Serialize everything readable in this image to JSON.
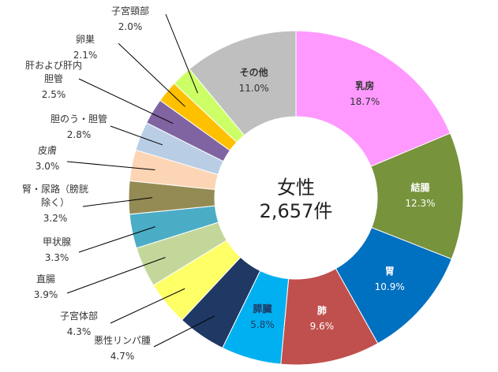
{
  "chart_data": {
    "type": "donut",
    "center_title": "女性",
    "center_subtitle": "2,657件",
    "categories": [
      "乳房",
      "結腸",
      "胃",
      "肺",
      "膵臓",
      "悪性リンパ腫",
      "子宮体部",
      "直腸",
      "甲状腺",
      "腎・尿路（膀胱\n除く）",
      "皮膚",
      "胆のう・胆管",
      "肝および肝内\n胆管",
      "卵巣",
      "子宮頸部",
      "その他"
    ],
    "values": [
      18.7,
      12.3,
      10.9,
      9.6,
      5.8,
      4.7,
      4.3,
      3.9,
      3.3,
      3.2,
      3.0,
      2.8,
      2.5,
      2.1,
      2.0,
      11.0
    ],
    "value_labels": [
      "18.7%",
      "12.3%",
      "10.9%",
      "9.6%",
      "5.8%",
      "4.7%",
      "4.3%",
      "3.9%",
      "3.3%",
      "3.2%",
      "3.0%",
      "2.8%",
      "2.5%",
      "2.1%",
      "2.0%",
      "11.0%"
    ],
    "colors": [
      "#ff99ff",
      "#77933c",
      "#0070c0",
      "#c0504d",
      "#00b0f0",
      "#1f3864",
      "#ffff66",
      "#c4d79b",
      "#4bacc6",
      "#948a54",
      "#fcd5b4",
      "#b9cde5",
      "#8064a2",
      "#ffc000",
      "#ccff66",
      "#bfbfbf"
    ]
  }
}
